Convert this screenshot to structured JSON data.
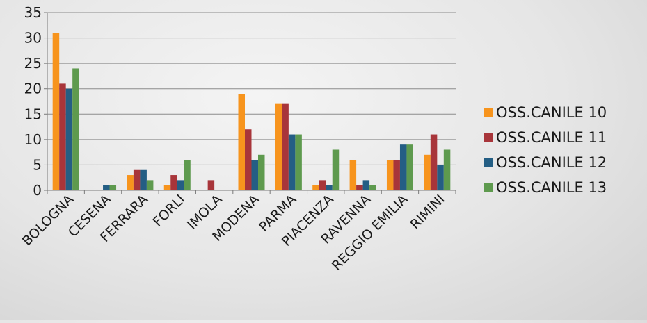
{
  "chart_data": {
    "type": "bar",
    "title": "",
    "xlabel": "",
    "ylabel": "",
    "ylim": [
      0,
      35
    ],
    "yticks": [
      0,
      5,
      10,
      15,
      20,
      25,
      30,
      35
    ],
    "grid": true,
    "legend_position": "right",
    "categories": [
      "BOLOGNA",
      "CESENA",
      "FERRARA",
      "FORLI",
      "IMOLA",
      "MODENA",
      "PARMA",
      "PIACENZA",
      "RAVENNA",
      "REGGIO EMILIA",
      "RIMINI"
    ],
    "series": [
      {
        "name": "OSS.CANILE 10",
        "color": "#F7941D",
        "values": [
          31,
          0,
          3,
          1,
          0,
          19,
          17,
          1,
          6,
          6,
          7
        ]
      },
      {
        "name": "OSS.CANILE 11",
        "color": "#A8353A",
        "values": [
          21,
          0,
          4,
          3,
          2,
          12,
          17,
          2,
          1,
          6,
          11
        ]
      },
      {
        "name": "OSS.CANILE 12",
        "color": "#245E84",
        "values": [
          20,
          1,
          4,
          2,
          0,
          6,
          11,
          1,
          2,
          9,
          5
        ]
      },
      {
        "name": "OSS.CANILE 13",
        "color": "#5E9A4E",
        "values": [
          24,
          1,
          2,
          6,
          0,
          7,
          11,
          8,
          1,
          9,
          8
        ]
      }
    ]
  }
}
